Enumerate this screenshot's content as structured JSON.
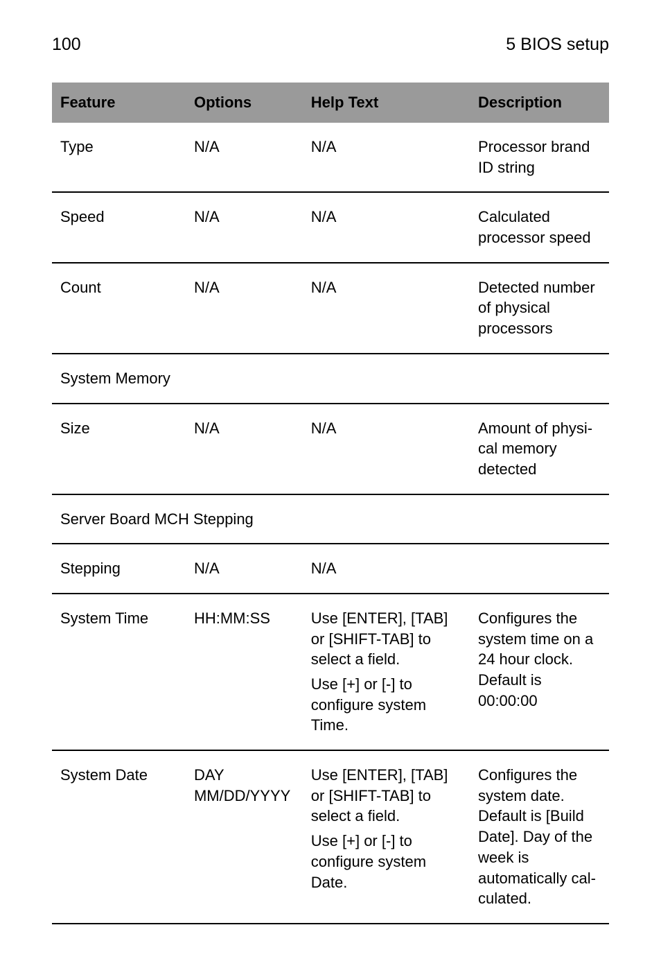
{
  "header": {
    "page_number": "100",
    "chapter_title": "5 BIOS setup"
  },
  "table": {
    "columns": [
      "Feature",
      "Options",
      "Help Text",
      "Description"
    ],
    "header_bg": "#9a9a9a",
    "header_fg": "#000000",
    "border_color": "#000000",
    "font_size_pt": 16,
    "header_font_weight": 700
  },
  "rows": {
    "r0": {
      "feature": "Type",
      "options": "N/A",
      "help": "N/A",
      "desc": "Processor brand ID string"
    },
    "r1": {
      "feature": "Speed",
      "options": "N/A",
      "help": "N/A",
      "desc": "Calculated proces­sor speed"
    },
    "r2": {
      "feature": "Count",
      "options": "N/A",
      "help": "N/A",
      "desc": "Detected number of physical proces­sors"
    },
    "section1": {
      "label": "System Memory"
    },
    "r3": {
      "feature": "Size",
      "options": "N/A",
      "help": "N/A",
      "desc": "Amount of physi­cal memory detected"
    },
    "section2": {
      "label": "Server Board MCH Stepping"
    },
    "r4": {
      "feature": "Stepping",
      "options": "N/A",
      "help": "N/A",
      "desc": ""
    },
    "r5": {
      "feature": "System Time",
      "options": "HH:MM:SS",
      "help1": "Use [ENTER], [TAB] or [SHIFT-TAB] to select a field.",
      "help2": "Use [+] or [-] to configure system Time.",
      "desc": "Configures the sys­tem time on a 24 hour clock. Default is 00:00:00"
    },
    "r6": {
      "feature": "System Date",
      "options": "DAY MM/DD/YYYY",
      "help1": "Use [ENTER], [TAB] or [SHIFT-TAB] to select a field.",
      "help2": "Use [+] or [-] to configure system Date.",
      "desc": "Configures the sys­tem date. Default is [Build Date]. Day of the week is automatically cal­culated."
    }
  }
}
